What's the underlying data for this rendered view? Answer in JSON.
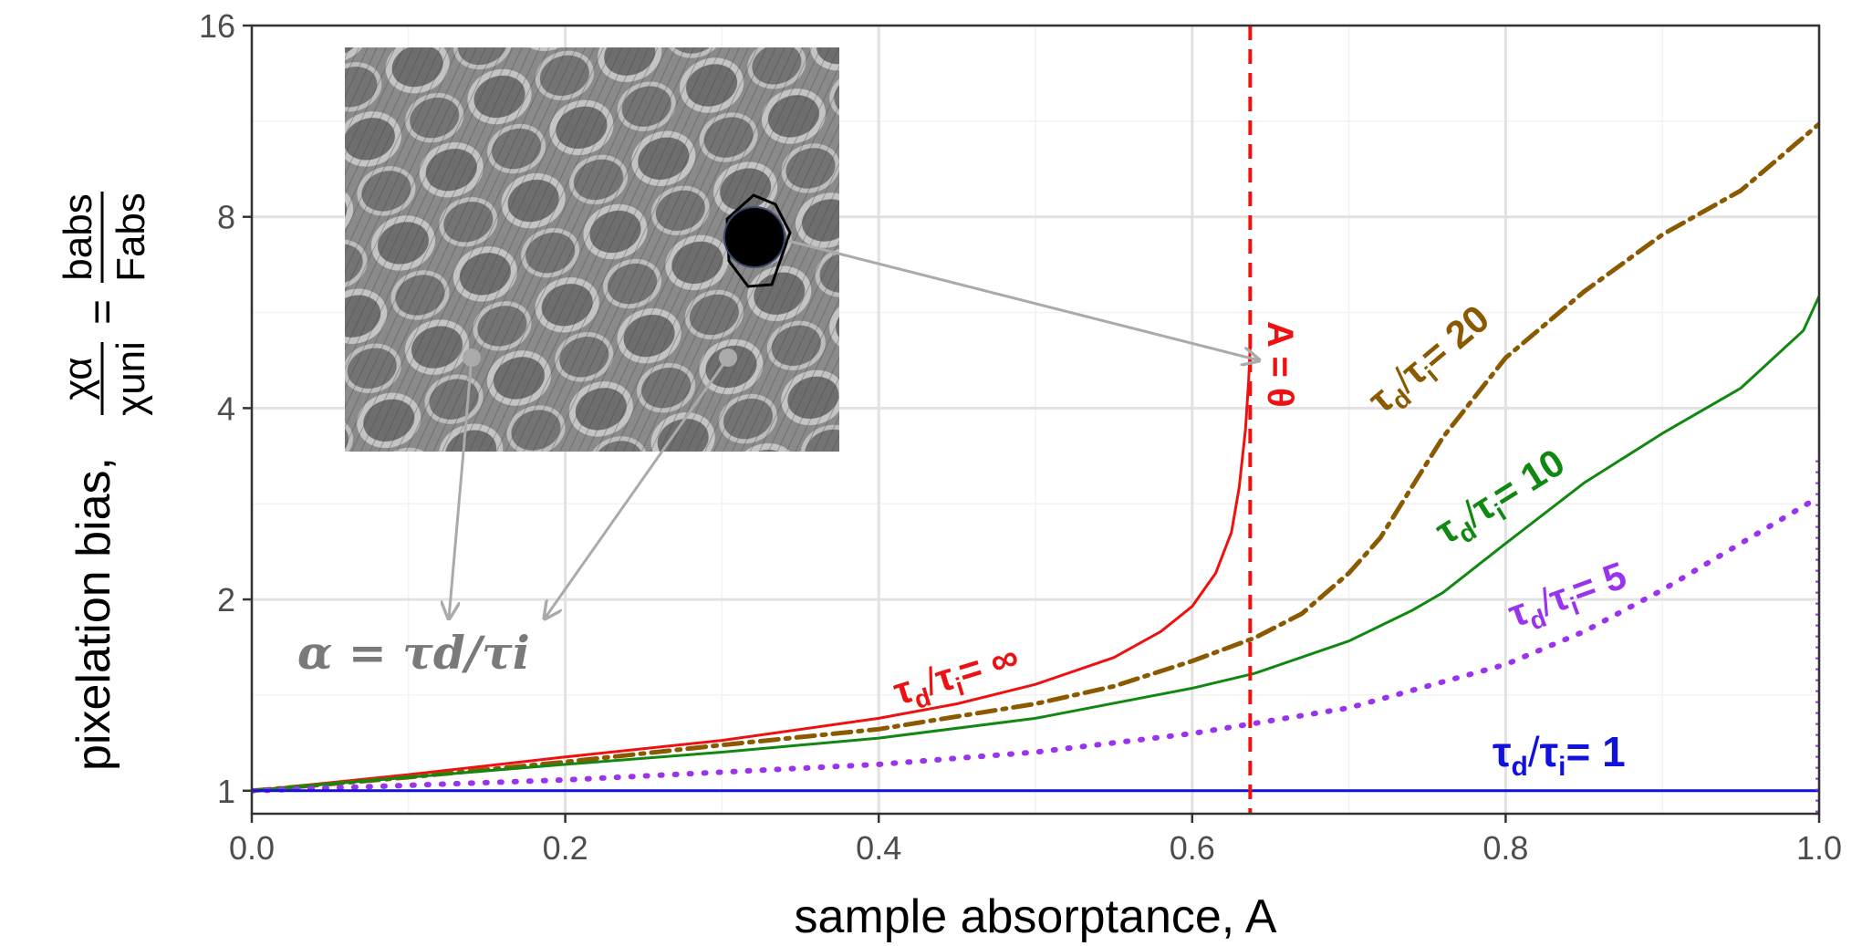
{
  "chart_data": {
    "type": "line",
    "xlabel": "sample absorptance,  A",
    "ylabel": {
      "prefix": "pixelation bias,",
      "ratio1_num": "χα",
      "ratio1_den": "χuni",
      "equals": "=",
      "ratio2_num": "babs",
      "ratio2_den": "Fabs"
    },
    "x_ticks": [
      "0.0",
      "0.2",
      "0.4",
      "0.6",
      "0.8",
      "1.0"
    ],
    "x_tick_values": [
      0.0,
      0.2,
      0.4,
      0.6,
      0.8,
      1.0
    ],
    "y_ticks": [
      "1",
      "2",
      "4",
      "8",
      "16"
    ],
    "y_tick_values": [
      1,
      2,
      4,
      8,
      16
    ],
    "xlim": [
      0,
      1
    ],
    "ylim": [
      0.92,
      16
    ],
    "y_scale": "log",
    "grid": true,
    "theta_line": {
      "x": 0.637,
      "label": "A = θ",
      "color": "#ee1111"
    },
    "series": [
      {
        "name": "τd/τi = ∞",
        "color": "#ee1111",
        "style": "solid",
        "x": [
          0,
          0.1,
          0.2,
          0.3,
          0.4,
          0.45,
          0.5,
          0.55,
          0.58,
          0.6,
          0.615,
          0.625,
          0.63,
          0.634,
          0.636,
          0.637
        ],
        "y": [
          1.0,
          1.06,
          1.13,
          1.2,
          1.3,
          1.37,
          1.47,
          1.62,
          1.78,
          1.95,
          2.2,
          2.55,
          3.0,
          3.7,
          4.4,
          5.0
        ]
      },
      {
        "name": "τd/τi = 20",
        "color": "#8b5a00",
        "style": "dashdot",
        "x": [
          0,
          0.1,
          0.2,
          0.3,
          0.4,
          0.5,
          0.55,
          0.6,
          0.64,
          0.67,
          0.7,
          0.72,
          0.74,
          0.76,
          0.8,
          0.85,
          0.9,
          0.95,
          1.0
        ],
        "y": [
          1.0,
          1.05,
          1.11,
          1.18,
          1.25,
          1.37,
          1.46,
          1.6,
          1.74,
          1.9,
          2.2,
          2.5,
          3.0,
          3.6,
          4.8,
          6.1,
          7.5,
          8.8,
          11.2
        ]
      },
      {
        "name": "τd/τi = 10",
        "color": "#118811",
        "style": "solid",
        "x": [
          0,
          0.1,
          0.2,
          0.3,
          0.4,
          0.5,
          0.6,
          0.64,
          0.7,
          0.74,
          0.76,
          0.8,
          0.85,
          0.9,
          0.95,
          0.99,
          1.0
        ],
        "y": [
          1.0,
          1.05,
          1.1,
          1.15,
          1.21,
          1.3,
          1.45,
          1.53,
          1.72,
          1.92,
          2.05,
          2.45,
          3.05,
          3.65,
          4.3,
          5.3,
          6.0
        ]
      },
      {
        "name": "τd/τi = 5",
        "color": "#9933ee",
        "style": "dotted",
        "x": [
          0,
          0.2,
          0.4,
          0.5,
          0.6,
          0.7,
          0.8,
          0.85,
          0.9,
          0.95,
          1.0
        ],
        "y": [
          1.0,
          1.04,
          1.1,
          1.15,
          1.23,
          1.35,
          1.58,
          1.78,
          2.07,
          2.45,
          2.9
        ]
      },
      {
        "name": "τd/τi = 1",
        "color": "#1111dd",
        "style": "solid",
        "x": [
          0,
          1
        ],
        "y": [
          1.0,
          1.0
        ]
      }
    ],
    "annotations": {
      "alpha_formula": "α = τd/τi",
      "tau": "τ",
      "sub_d": "d",
      "sub_i": "i",
      "slash": "/",
      "eq_inf": "= ∞",
      "eq_20": "= 20",
      "eq_10": "= 10",
      "eq_5": "= 5",
      "eq_1": "= 1",
      "theta_A": "A = θ"
    }
  }
}
